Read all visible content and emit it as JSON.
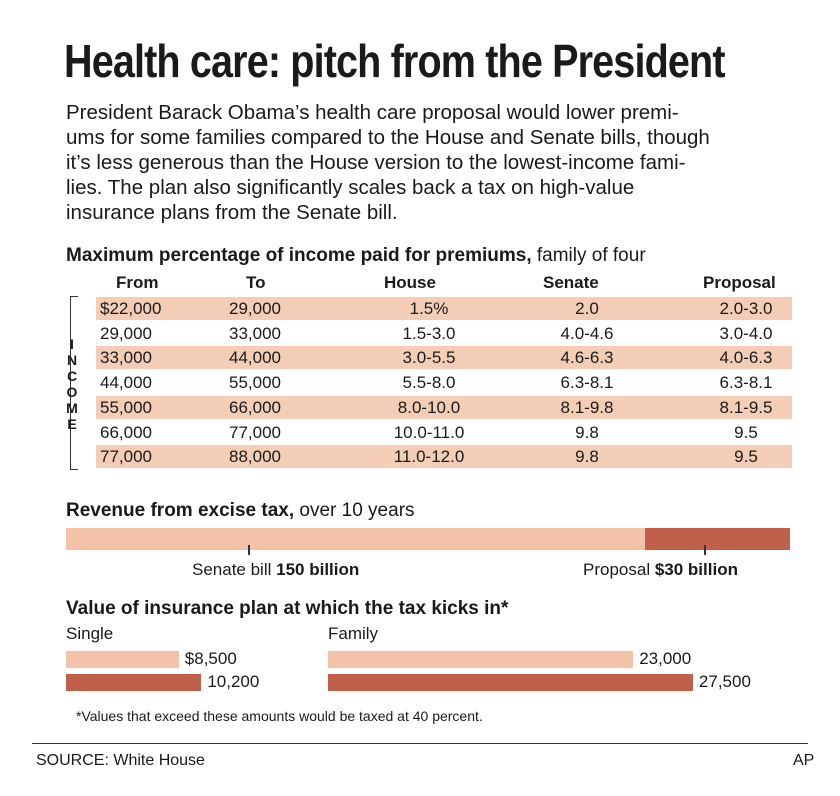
{
  "title": "Health care: pitch from the President",
  "intro_lines": [
    "President Barack Obama’s health care proposal would lower premi-",
    "ums for some families compared to the House and Senate bills, though",
    "it’s less generous than the House version to the lowest-income fami-",
    "lies. The plan also significantly scales back a tax on high-value",
    "insurance plans from the Senate bill."
  ],
  "premiums": {
    "heading_bold": "Maximum percentage of income paid for premiums,",
    "heading_rest": " family of four",
    "side_label": "INCOME",
    "columns": [
      "From",
      "To",
      "House",
      "Senate",
      "Proposal"
    ],
    "rows": [
      [
        "$22,000",
        "29,000",
        "1.5%",
        "2.0",
        "2.0-3.0"
      ],
      [
        "29,000",
        "33,000",
        "1.5-3.0",
        "4.0-4.6",
        "3.0-4.0"
      ],
      [
        "33,000",
        "44,000",
        "3.0-5.5",
        "4.6-6.3",
        "4.0-6.3"
      ],
      [
        "44,000",
        "55,000",
        "5.5-8.0",
        "6.3-8.1",
        "6.3-8.1"
      ],
      [
        "55,000",
        "66,000",
        "8.0-10.0",
        "8.1-9.8",
        "8.1-9.5"
      ],
      [
        "66,000",
        "77,000",
        "10.0-11.0",
        "9.8",
        "9.5"
      ],
      [
        "77,000",
        "88,000",
        "11.0-12.0",
        "9.8",
        "9.5"
      ]
    ]
  },
  "excise": {
    "heading_bold": "Revenue from excise tax,",
    "heading_rest": " over 10 years",
    "senate_prefix": "Senate bill ",
    "senate_value": "150 billion",
    "proposal_prefix": "Proposal ",
    "proposal_value": "$30 billion"
  },
  "threshold": {
    "heading": "Value of insurance plan at which the tax kicks in*",
    "single_label": "Single",
    "family_label": "Family",
    "single_senate_label": "$8,500",
    "single_proposal_label": "10,200",
    "family_senate_label": "23,000",
    "family_proposal_label": "27,500"
  },
  "footnote": "*Values that exceed these amounts would be taxed at 40 percent.",
  "source": "SOURCE: White House",
  "credit": "AP",
  "colors": {
    "senate_bar": "#f3c2a8",
    "proposal_bar": "#c0604a",
    "row_shade": "#f3cdb6"
  },
  "chart_data": [
    {
      "type": "table",
      "title": "Maximum percentage of income paid for premiums, family of four",
      "columns": [
        "From",
        "To",
        "House",
        "Senate",
        "Proposal"
      ],
      "rows": [
        [
          "$22,000",
          "29,000",
          "1.5%",
          "2.0",
          "2.0-3.0"
        ],
        [
          "29,000",
          "33,000",
          "1.5-3.0",
          "4.0-4.6",
          "3.0-4.0"
        ],
        [
          "33,000",
          "44,000",
          "3.0-5.5",
          "4.6-6.3",
          "4.0-6.3"
        ],
        [
          "44,000",
          "55,000",
          "5.5-8.0",
          "6.3-8.1",
          "6.3-8.1"
        ],
        [
          "55,000",
          "66,000",
          "8.0-10.0",
          "8.1-9.8",
          "8.1-9.5"
        ],
        [
          "66,000",
          "77,000",
          "10.0-11.0",
          "9.8",
          "9.5"
        ],
        [
          "77,000",
          "88,000",
          "11.0-12.0",
          "9.8",
          "9.5"
        ]
      ]
    },
    {
      "type": "bar",
      "title": "Revenue from excise tax, over 10 years",
      "categories": [
        "Senate bill",
        "Proposal"
      ],
      "values": [
        150,
        30
      ],
      "unit": "billion"
    },
    {
      "type": "bar",
      "title": "Value of insurance plan at which the tax kicks in*",
      "categories": [
        "Single",
        "Family"
      ],
      "series": [
        {
          "values": [
            8500,
            23000
          ]
        },
        {
          "values": [
            10200,
            27500
          ]
        }
      ]
    }
  ]
}
